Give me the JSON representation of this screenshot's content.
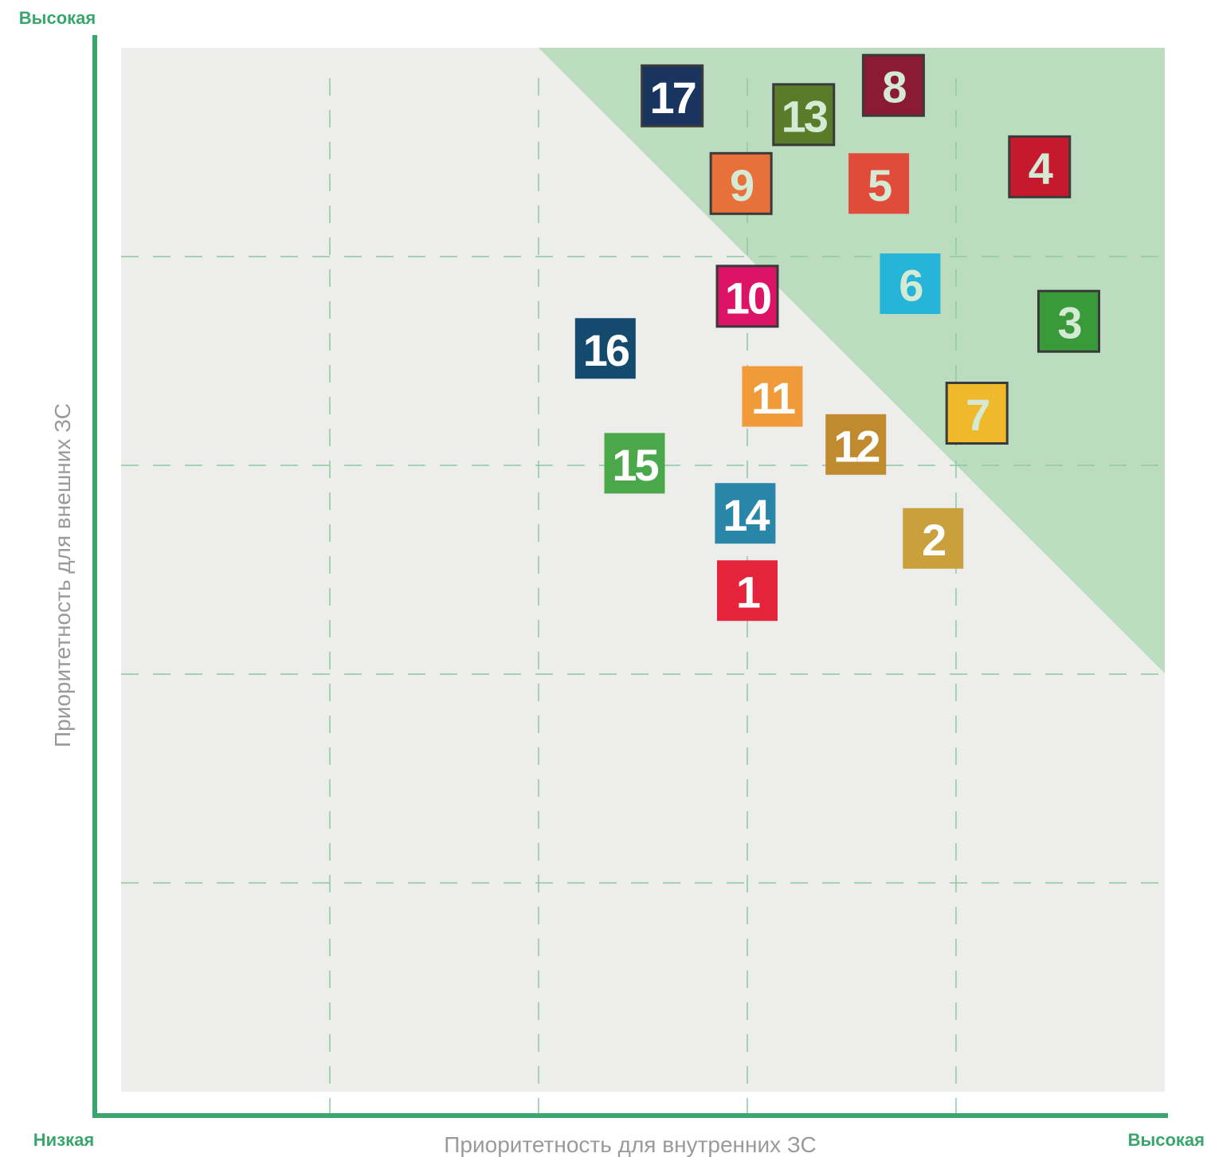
{
  "chart_data": {
    "type": "scatter",
    "x_label": "Приоритетность для внутренних ЗС",
    "y_label": "Приоритетность для внешних ЗС",
    "x_low_label": "Низкая",
    "x_high_label": "Высокая",
    "y_high_label": "Высокая",
    "xlim": [
      0,
      5
    ],
    "ylim": [
      0,
      5
    ],
    "xticks": [
      1,
      2,
      3,
      4
    ],
    "yticks": [
      1,
      2,
      3,
      4
    ],
    "grid": true,
    "labels": [
      "1",
      "2",
      "3",
      "4",
      "5",
      "6",
      "7",
      "8",
      "9",
      "10",
      "11",
      "12",
      "13",
      "14",
      "15",
      "16",
      "17"
    ],
    "x": [
      3.0,
      3.89,
      4.54,
      4.4,
      3.63,
      3.78,
      4.1,
      3.7,
      2.97,
      3.0,
      3.12,
      3.52,
      3.27,
      2.99,
      2.46,
      2.32,
      2.64
    ],
    "y": [
      2.4,
      2.65,
      3.69,
      4.43,
      4.35,
      3.87,
      3.25,
      4.82,
      4.35,
      3.81,
      3.33,
      3.1,
      4.68,
      2.77,
      3.01,
      3.56,
      4.77
    ],
    "colors": [
      "#e5243b",
      "#c9a03c",
      "#3a9a3a",
      "#c5192d",
      "#e04b3a",
      "#26b4d8",
      "#f0b92c",
      "#8b1a33",
      "#e8703a",
      "#dd1367",
      "#f09a3a",
      "#bf8b2e",
      "#5a7b2a",
      "#2a86a8",
      "#4aa84a",
      "#134a6e",
      "#19345e"
    ],
    "label_colors": [
      "#ffffff",
      "#ffffff",
      "#d4ead4",
      "#d4ead4",
      "#d4ead4",
      "#d4ead4",
      "#d4ead4",
      "#d4ead4",
      "#d4ead4",
      "#ffffff",
      "#ffffff",
      "#ffffff",
      "#d4ead4",
      "#ffffff",
      "#ffffff",
      "#ffffff",
      "#ffffff"
    ],
    "outlined": [
      false,
      false,
      true,
      true,
      false,
      false,
      true,
      true,
      true,
      true,
      false,
      false,
      true,
      false,
      false,
      false,
      true
    ]
  }
}
